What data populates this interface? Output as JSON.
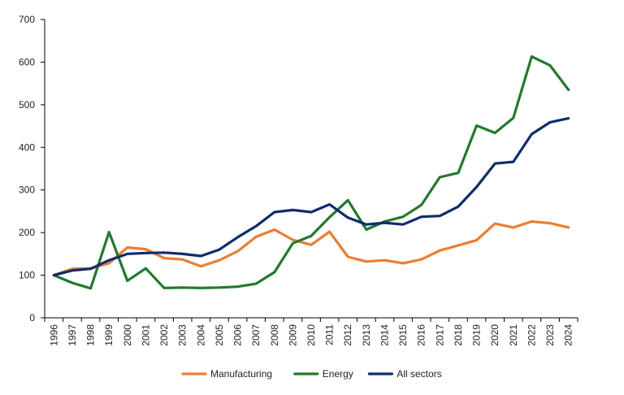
{
  "chart_data": {
    "type": "line",
    "title": "",
    "xlabel": "",
    "ylabel": "",
    "categories": [
      "1996",
      "1997",
      "1998",
      "1999",
      "2000",
      "2001",
      "2002",
      "2003",
      "2004",
      "2005",
      "2006",
      "2007",
      "2008",
      "2009",
      "2010",
      "2011",
      "2012",
      "2013",
      "2014",
      "2015",
      "2016",
      "2017",
      "2018",
      "2019",
      "2020",
      "2021",
      "2022",
      "2023",
      "2024"
    ],
    "ylim": [
      0,
      700
    ],
    "yticks": [
      0,
      100,
      200,
      300,
      400,
      500,
      600,
      700
    ],
    "grid": false,
    "legend_position": "bottom",
    "series": [
      {
        "name": "Manufacturing",
        "color": "#ED7D31",
        "values": [
          100,
          115,
          116,
          128,
          165,
          161,
          140,
          137,
          121,
          135,
          156,
          190,
          207,
          183,
          171,
          202,
          143,
          132,
          135,
          128,
          137,
          158,
          170,
          182,
          221,
          212,
          226,
          222,
          212
        ]
      },
      {
        "name": "Energy",
        "color": "#217A2B",
        "values": [
          100,
          82,
          69,
          201,
          87,
          116,
          70,
          71,
          70,
          71,
          73,
          80,
          107,
          175,
          192,
          236,
          276,
          207,
          226,
          237,
          265,
          330,
          340,
          451,
          434,
          469,
          613,
          592,
          535
        ]
      },
      {
        "name": "All sectors",
        "color": "#0E2C6E",
        "values": [
          100,
          111,
          115,
          135,
          150,
          152,
          153,
          150,
          145,
          160,
          189,
          215,
          248,
          253,
          248,
          266,
          235,
          219,
          223,
          219,
          237,
          239,
          261,
          307,
          362,
          366,
          431,
          459,
          468
        ]
      }
    ]
  }
}
